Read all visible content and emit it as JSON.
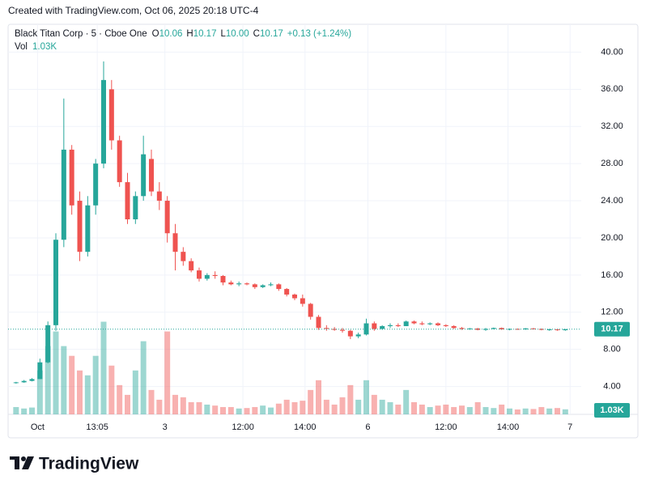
{
  "header": "Created with TradingView.com, Oct 06, 2025 20:18 UTC-4",
  "footer": "TradingView",
  "chart_data": {
    "type": "candlestick",
    "legend": {
      "symbol": "Black Titan Corp · 5 · Cboe One",
      "items": [
        {
          "key": "O",
          "value": "10.06"
        },
        {
          "key": "H",
          "value": "10.17"
        },
        {
          "key": "L",
          "value": "10.00"
        },
        {
          "key": "C",
          "value": "10.17"
        }
      ],
      "change": "+0.13 (+1.24%)",
      "volume_key": "Vol",
      "volume_value": "1.03K"
    },
    "up_color": "#26a69a",
    "down_color": "#ef5350",
    "open": [
      4.4,
      4.45,
      4.6,
      4.8,
      6.6,
      10.6,
      19.8,
      29.5,
      24.0,
      18.5,
      23.5,
      28.0,
      36.0,
      30.5,
      26.0,
      22.0,
      24.5,
      28.5,
      25.0,
      24.0,
      20.5,
      18.5,
      17.5,
      16.5,
      15.6,
      16.0,
      15.9,
      15.2,
      15.0,
      15.1,
      15.0,
      14.7,
      14.9,
      15.0,
      14.5,
      13.9,
      13.5,
      12.9,
      11.5,
      10.3,
      10.2,
      10.1,
      10.0,
      9.4,
      9.6,
      10.8,
      10.2,
      10.5,
      10.6,
      10.5,
      11.0,
      10.8,
      10.7,
      10.8,
      10.6,
      10.5,
      10.3,
      10.2,
      10.25,
      10.1,
      10.2,
      10.3,
      10.15,
      10.2,
      10.15,
      10.25,
      10.2,
      10.1,
      10.15,
      10.06
    ],
    "high": [
      4.5,
      4.7,
      4.9,
      7.0,
      11.0,
      20.5,
      35.0,
      30.0,
      25.0,
      24.5,
      28.5,
      39.0,
      37.0,
      31.0,
      27.0,
      25.0,
      31.0,
      29.5,
      26.0,
      24.5,
      21.5,
      19.0,
      17.8,
      16.8,
      16.2,
      16.4,
      16.0,
      15.4,
      15.3,
      15.2,
      15.1,
      15.0,
      15.2,
      15.1,
      14.6,
      14.0,
      13.9,
      13.0,
      11.7,
      10.6,
      10.4,
      10.3,
      10.1,
      9.8,
      11.3,
      11.0,
      10.6,
      10.8,
      10.8,
      11.1,
      11.1,
      11.0,
      10.9,
      10.9,
      10.7,
      10.6,
      10.4,
      10.3,
      10.3,
      10.3,
      10.35,
      10.35,
      10.25,
      10.25,
      10.3,
      10.3,
      10.25,
      10.2,
      10.2,
      10.17
    ],
    "low": [
      4.3,
      4.4,
      4.55,
      4.8,
      6.5,
      10.0,
      19.0,
      22.5,
      17.5,
      18.0,
      22.5,
      27.5,
      29.5,
      25.5,
      21.5,
      21.5,
      24.0,
      24.5,
      23.0,
      19.5,
      16.5,
      17.0,
      16.3,
      15.3,
      15.4,
      15.6,
      14.9,
      14.9,
      14.8,
      14.9,
      14.5,
      14.6,
      14.8,
      14.3,
      13.7,
      13.3,
      12.6,
      11.2,
      10.1,
      10.0,
      10.0,
      9.8,
      9.1,
      9.2,
      9.5,
      10.0,
      10.1,
      10.3,
      10.4,
      10.5,
      10.7,
      10.6,
      10.6,
      10.5,
      10.4,
      10.2,
      10.1,
      10.1,
      10.05,
      10.0,
      10.15,
      10.1,
      10.05,
      10.1,
      10.1,
      10.15,
      10.05,
      10.0,
      10.0,
      10.0
    ],
    "close": [
      4.45,
      4.6,
      4.8,
      6.6,
      10.6,
      19.8,
      29.5,
      23.5,
      18.5,
      23.5,
      28.0,
      37.0,
      30.5,
      26.0,
      22.0,
      24.5,
      29.0,
      25.0,
      24.0,
      20.5,
      18.5,
      17.5,
      16.5,
      15.6,
      16.0,
      15.9,
      15.2,
      15.0,
      15.1,
      15.0,
      14.7,
      14.9,
      15.0,
      14.5,
      13.9,
      13.5,
      12.9,
      11.5,
      10.3,
      10.2,
      10.1,
      10.0,
      9.4,
      9.6,
      10.8,
      10.2,
      10.5,
      10.6,
      10.5,
      11.0,
      10.8,
      10.7,
      10.8,
      10.6,
      10.5,
      10.3,
      10.2,
      10.25,
      10.1,
      10.2,
      10.3,
      10.15,
      10.2,
      10.15,
      10.25,
      10.2,
      10.1,
      10.15,
      10.06,
      10.17
    ],
    "volume": [
      1500,
      1200,
      1400,
      9000,
      14000,
      17000,
      14000,
      12000,
      9000,
      8000,
      12000,
      19000,
      10000,
      6000,
      4000,
      9000,
      15000,
      5000,
      3000,
      17000,
      4000,
      3500,
      2500,
      2500,
      2000,
      1800,
      1500,
      1500,
      1200,
      1300,
      1500,
      1800,
      1400,
      2200,
      3000,
      2500,
      2800,
      5000,
      7000,
      3000,
      2000,
      3500,
      6000,
      3000,
      7000,
      4000,
      3000,
      2500,
      2000,
      5000,
      2500,
      2000,
      1500,
      1800,
      2000,
      1500,
      1800,
      1500,
      2500,
      1500,
      1300,
      2000,
      1200,
      1000,
      1200,
      1100,
      1500,
      1200,
      1300,
      1030
    ],
    "volume_label": "1.03K",
    "xlim": [
      -1,
      71
    ],
    "xticks": [
      {
        "value": 2.7,
        "label": "Oct"
      },
      {
        "value": 10.2,
        "label": "13:05"
      },
      {
        "value": 18.7,
        "label": "3"
      },
      {
        "value": 28.5,
        "label": "12:00"
      },
      {
        "value": 36.3,
        "label": "14:00"
      },
      {
        "value": 44.2,
        "label": "6"
      },
      {
        "value": 54,
        "label": "12:00"
      },
      {
        "value": 61.8,
        "label": "14:00"
      },
      {
        "value": 69.6,
        "label": "7"
      }
    ],
    "ylim": [
      1,
      43
    ],
    "yticks": [
      {
        "value": 4,
        "label": "4.00"
      },
      {
        "value": 8,
        "label": "8.00"
      },
      {
        "value": 12,
        "label": "12.00"
      },
      {
        "value": 16,
        "label": "16.00"
      },
      {
        "value": 20,
        "label": "20.00"
      },
      {
        "value": 24,
        "label": "24.00"
      },
      {
        "value": 28,
        "label": "28.00"
      },
      {
        "value": 32,
        "label": "32.00"
      },
      {
        "value": 36,
        "label": "36.00"
      },
      {
        "value": 40,
        "label": "40.00"
      }
    ],
    "y2lim": [
      0,
      80000
    ],
    "grid": true
  }
}
